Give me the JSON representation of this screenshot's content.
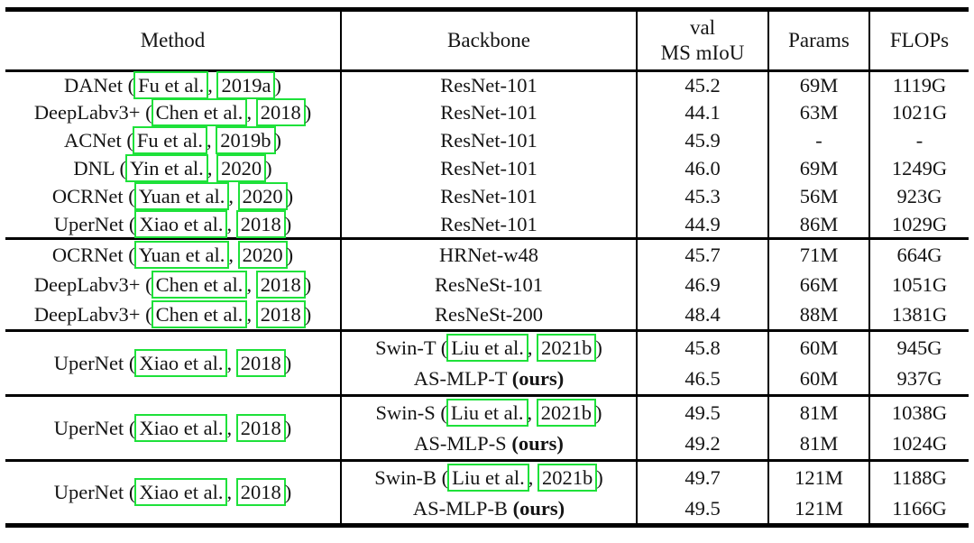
{
  "colors": {
    "citation_box": "#1ee13a",
    "rule": "#000000",
    "text": "#141414",
    "background": "#ffffff"
  },
  "headers": {
    "method": "Method",
    "backbone": "Backbone",
    "miou_line1": "val",
    "miou_line2": "MS mIoU",
    "params": "Params",
    "flops": "FLOPs"
  },
  "sections": [
    {
      "rows": [
        {
          "m_pre": "DANet (",
          "m_auth": "Fu et al.",
          "m_sep": ", ",
          "m_year": "2019a",
          "m_post": ")",
          "backbone": "ResNet-101",
          "miou": "45.2",
          "params": "69M",
          "flops": "1119G"
        },
        {
          "m_pre": "DeepLabv3+ (",
          "m_auth": "Chen et al.",
          "m_sep": ", ",
          "m_year": "2018",
          "m_post": ")",
          "backbone": "ResNet-101",
          "miou": "44.1",
          "params": "63M",
          "flops": "1021G"
        },
        {
          "m_pre": "ACNet (",
          "m_auth": "Fu et al.",
          "m_sep": ", ",
          "m_year": "2019b",
          "m_post": ")",
          "backbone": "ResNet-101",
          "miou": "45.9",
          "params": "-",
          "flops": "-"
        },
        {
          "m_pre": "DNL (",
          "m_auth": "Yin et al.",
          "m_sep": ", ",
          "m_year": "2020",
          "m_post": ")",
          "backbone": "ResNet-101",
          "miou": "46.0",
          "params": "69M",
          "flops": "1249G"
        },
        {
          "m_pre": "OCRNet (",
          "m_auth": "Yuan et al.",
          "m_sep": ", ",
          "m_year": "2020",
          "m_post": ")",
          "backbone": "ResNet-101",
          "miou": "45.3",
          "params": "56M",
          "flops": "923G"
        },
        {
          "m_pre": "UperNet (",
          "m_auth": "Xiao et al.",
          "m_sep": ", ",
          "m_year": "2018",
          "m_post": ")",
          "backbone": "ResNet-101",
          "miou": "44.9",
          "params": "86M",
          "flops": "1029G"
        }
      ]
    },
    {
      "rows": [
        {
          "m_pre": "OCRNet (",
          "m_auth": "Yuan et al.",
          "m_sep": ", ",
          "m_year": "2020",
          "m_post": ")",
          "backbone": "HRNet-w48",
          "miou": "45.7",
          "params": "71M",
          "flops": "664G"
        },
        {
          "m_pre": "DeepLabv3+ (",
          "m_auth": "Chen et al.",
          "m_sep": ", ",
          "m_year": "2018",
          "m_post": ")",
          "backbone": "ResNeSt-101",
          "miou": "46.9",
          "params": "66M",
          "flops": "1051G"
        },
        {
          "m_pre": "DeepLabv3+ (",
          "m_auth": "Chen et al.",
          "m_sep": ", ",
          "m_year": "2018",
          "m_post": ")",
          "backbone": "ResNeSt-200",
          "miou": "48.4",
          "params": "88M",
          "flops": "1381G"
        }
      ]
    },
    {
      "method": {
        "pre": "UperNet (",
        "auth": "Xiao et al.",
        "sep": ", ",
        "year": "2018",
        "post": ")"
      },
      "row1": {
        "b_pre": "Swin-T (",
        "b_auth": "Liu et al.",
        "b_sep": ", ",
        "b_year": "2021b",
        "b_post": ")",
        "miou": "45.8",
        "params": "60M",
        "flops": "945G"
      },
      "row2": {
        "b_text": "AS-MLP-T ",
        "b_bold": "(ours)",
        "miou": "46.5",
        "params": "60M",
        "flops": "937G"
      }
    },
    {
      "method": {
        "pre": "UperNet (",
        "auth": "Xiao et al.",
        "sep": ", ",
        "year": "2018",
        "post": ")"
      },
      "row1": {
        "b_pre": "Swin-S (",
        "b_auth": "Liu et al.",
        "b_sep": ", ",
        "b_year": "2021b",
        "b_post": ")",
        "miou": "49.5",
        "params": "81M",
        "flops": "1038G"
      },
      "row2": {
        "b_text": "AS-MLP-S ",
        "b_bold": "(ours)",
        "miou": "49.2",
        "params": "81M",
        "flops": "1024G"
      }
    },
    {
      "method": {
        "pre": "UperNet (",
        "auth": "Xiao et al.",
        "sep": ", ",
        "year": "2018",
        "post": ")"
      },
      "row1": {
        "b_pre": "Swin-B (",
        "b_auth": "Liu et al.",
        "b_sep": ", ",
        "b_year": "2021b",
        "b_post": ")",
        "miou": "49.7",
        "params": "121M",
        "flops": "1188G"
      },
      "row2": {
        "b_text": "AS-MLP-B ",
        "b_bold": "(ours)",
        "miou": "49.5",
        "params": "121M",
        "flops": "1166G"
      }
    }
  ]
}
